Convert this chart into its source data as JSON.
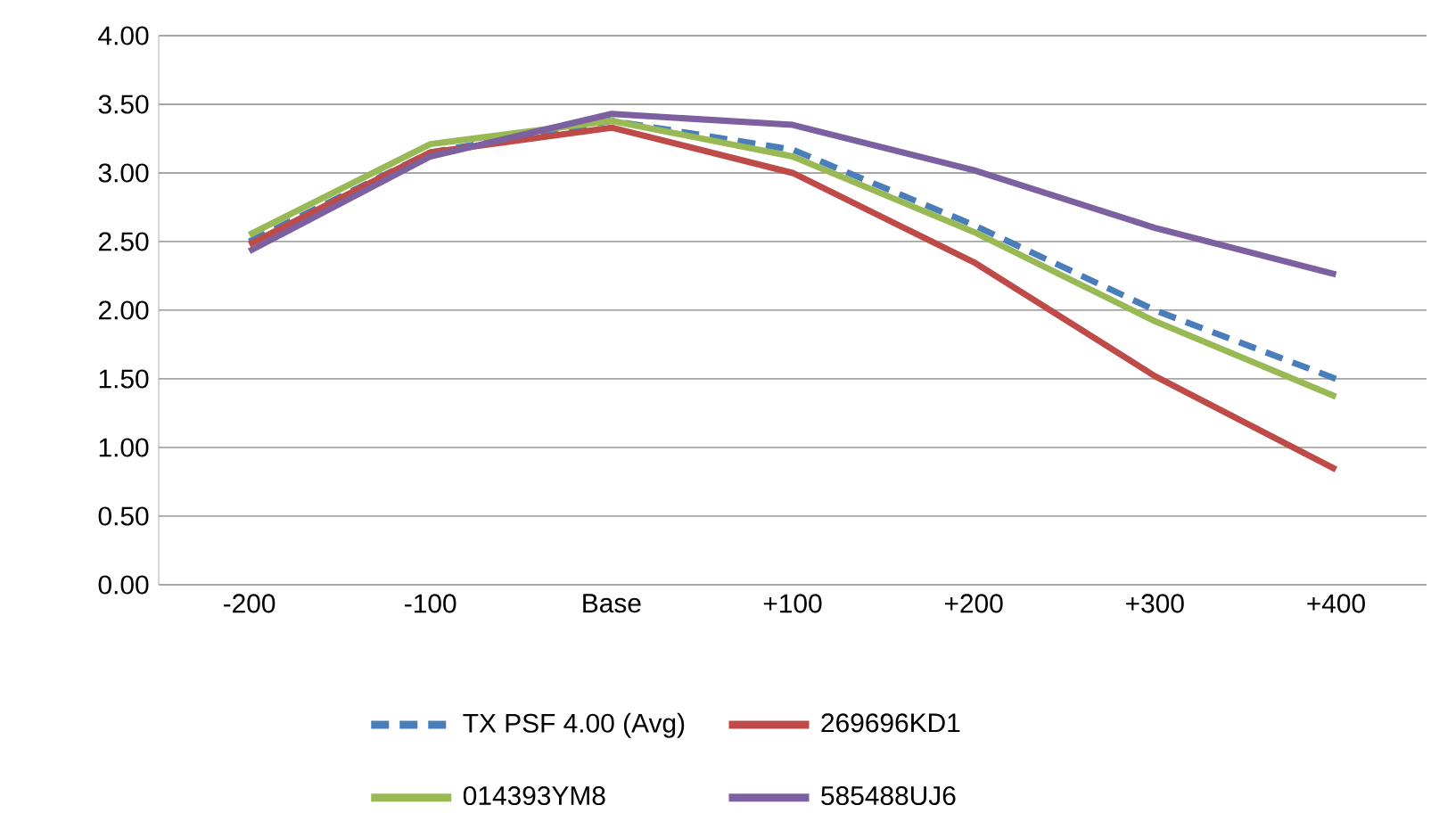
{
  "chart_data": {
    "type": "line",
    "categories": [
      "-200",
      "-100",
      "Base",
      "+100",
      "+200",
      "+300",
      "+400"
    ],
    "ylim": [
      0,
      4
    ],
    "yticks": [
      {
        "value": 0,
        "label": "0.00"
      },
      {
        "value": 0.5,
        "label": "0.50"
      },
      {
        "value": 1,
        "label": "1.00"
      },
      {
        "value": 1.5,
        "label": "1.50"
      },
      {
        "value": 2,
        "label": "2.00"
      },
      {
        "value": 2.5,
        "label": "2.50"
      },
      {
        "value": 3,
        "label": "3.00"
      },
      {
        "value": 3.5,
        "label": "3.50"
      },
      {
        "value": 4,
        "label": "4.00"
      }
    ],
    "grid": "y",
    "legend": "bottom",
    "marker": "none",
    "series": [
      {
        "name": "TX PSF 4.00 (Avg)",
        "color": "#4a7ebb",
        "line_style": "dashed",
        "values": [
          2.5,
          3.15,
          3.38,
          3.17,
          2.62,
          2.0,
          1.5
        ]
      },
      {
        "name": "269696KD1",
        "color": "#be4b48",
        "values": [
          2.48,
          3.15,
          3.33,
          3.0,
          2.35,
          1.52,
          0.84
        ]
      },
      {
        "name": "014393YM8",
        "color": "#98b954",
        "values": [
          2.55,
          3.21,
          3.38,
          3.12,
          2.57,
          1.92,
          1.37
        ]
      },
      {
        "name": "585488UJ6",
        "color": "#7d60a0",
        "values": [
          2.43,
          3.12,
          3.43,
          3.35,
          3.02,
          2.6,
          2.26
        ]
      }
    ]
  }
}
